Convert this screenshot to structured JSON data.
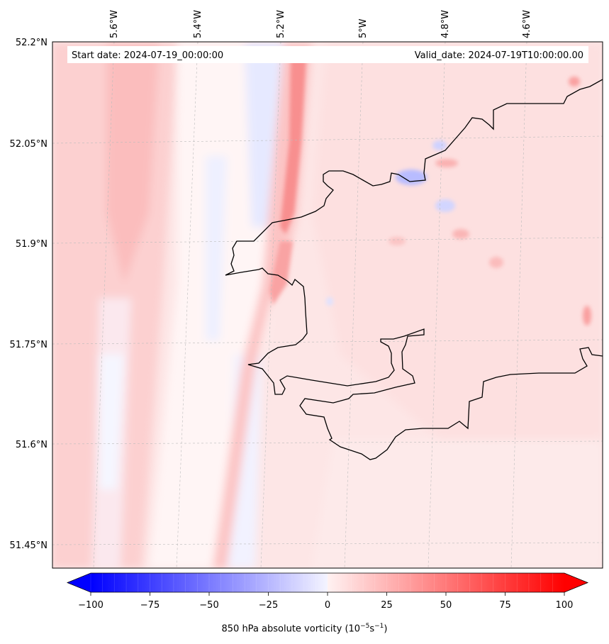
{
  "header": {
    "start_date": "Start date: 2024-07-19_00:00:00",
    "valid_date": "Valid_date: 2024-07-19T10:00:00.00"
  },
  "axes": {
    "lon_labels": [
      "5.6°W",
      "5.4°W",
      "5.2°W",
      "5°W",
      "4.8°W",
      "4.6°W"
    ],
    "lat_labels": [
      "52.2°N",
      "52.05°N",
      "51.9°N",
      "51.75°N",
      "51.6°N",
      "51.45°N"
    ]
  },
  "colorbar": {
    "label_main": "850 hPa absolute vorticity (10",
    "label_exp1": "−5",
    "label_mid": "s",
    "label_exp2": "−1",
    "label_end": ")",
    "ticks": [
      "−100",
      "−75",
      "−50",
      "−25",
      "0",
      "25",
      "50",
      "75",
      "100"
    ],
    "tick_values": [
      -100,
      -75,
      -50,
      -25,
      0,
      25,
      50,
      75,
      100
    ],
    "min": -100,
    "max": 100,
    "negative_color": "#0000ff",
    "positive_color": "#ff0000",
    "extend": "both"
  },
  "map": {
    "field": "850 hPa absolute vorticity",
    "background_color": "#fde6e6",
    "coastline_color": "#000000",
    "grid_color": "#bbbbbb"
  }
}
